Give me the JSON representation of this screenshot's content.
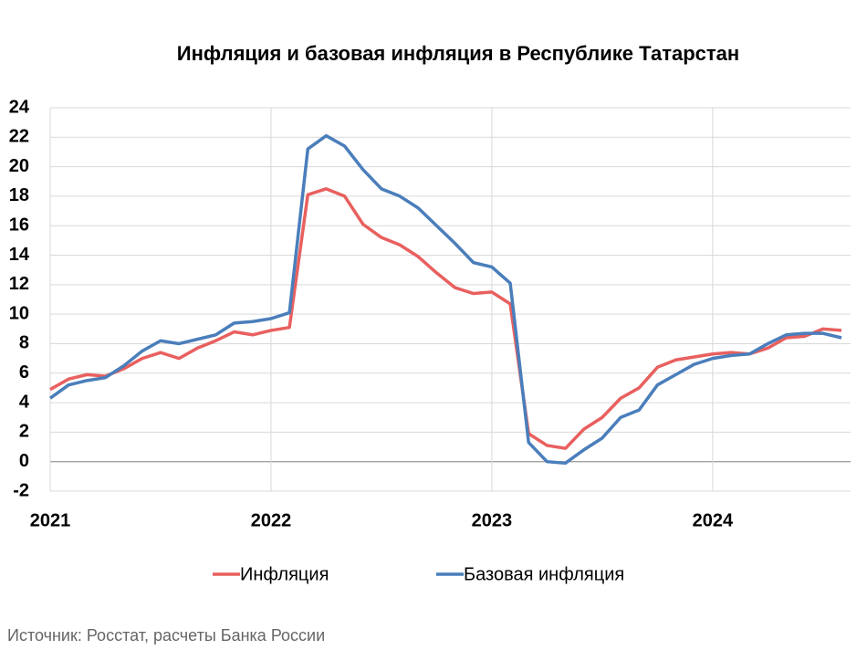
{
  "chart_data": {
    "type": "line",
    "title": "Инфляция и базовая инфляция в Республике Татарстан",
    "source": "Источник: Росстат, расчеты Банка России",
    "categories": [
      "2021",
      null,
      null,
      null,
      null,
      null,
      null,
      null,
      null,
      null,
      null,
      null,
      "2022",
      null,
      null,
      null,
      null,
      null,
      null,
      null,
      null,
      null,
      null,
      null,
      "2023",
      null,
      null,
      null,
      null,
      null,
      null,
      null,
      null,
      null,
      null,
      null,
      "2024",
      null,
      null,
      null,
      null,
      null,
      null,
      null
    ],
    "series": [
      {
        "name": "Инфляция",
        "color": "#e8605f",
        "values": [
          4.9,
          5.6,
          5.9,
          5.8,
          6.3,
          7.0,
          7.4,
          7.0,
          7.7,
          8.2,
          8.8,
          8.6,
          8.9,
          9.1,
          18.1,
          18.5,
          18.0,
          16.1,
          15.2,
          14.7,
          13.9,
          12.8,
          11.8,
          11.4,
          11.5,
          10.7,
          1.9,
          1.1,
          0.9,
          2.2,
          3.0,
          4.3,
          5.0,
          6.4,
          6.9,
          7.1,
          7.3,
          7.4,
          7.3,
          7.7,
          8.4,
          8.5,
          9.0,
          8.9
        ]
      },
      {
        "name": "Базовая инфляция",
        "color": "#4a7ebb",
        "values": [
          4.3,
          5.2,
          5.5,
          5.7,
          6.5,
          7.5,
          8.2,
          8.0,
          8.3,
          8.6,
          9.4,
          9.5,
          9.7,
          10.1,
          21.2,
          22.1,
          21.4,
          19.8,
          18.5,
          18.0,
          17.2,
          16.0,
          14.8,
          13.5,
          13.2,
          12.1,
          1.3,
          0.0,
          -0.1,
          0.8,
          1.6,
          3.0,
          3.5,
          5.2,
          5.9,
          6.6,
          7.0,
          7.2,
          7.3,
          8.0,
          8.6,
          8.7,
          8.7,
          8.4
        ]
      }
    ],
    "ylim": [
      -2,
      24
    ],
    "yticks": [
      -2,
      0,
      2,
      4,
      6,
      8,
      10,
      12,
      14,
      16,
      18,
      20,
      22,
      24
    ],
    "grid": true,
    "legend": "bottom"
  }
}
